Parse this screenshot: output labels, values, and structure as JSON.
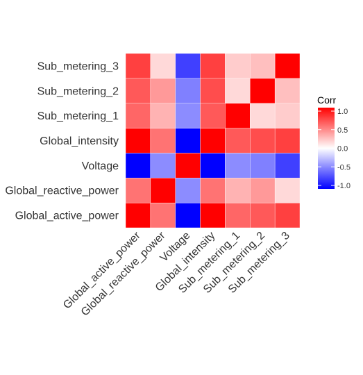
{
  "chart_data": {
    "type": "heatmap",
    "title": "",
    "xlabel": "",
    "ylabel": "",
    "x_categories": [
      "Global_active_power",
      "Global_reactive_power",
      "Voltage",
      "Global_intensity",
      "Sub_metering_1",
      "Sub_metering_2",
      "Sub_metering_3"
    ],
    "y_categories": [
      "Global_active_power",
      "Global_reactive_power",
      "Voltage",
      "Global_intensity",
      "Sub_metering_1",
      "Sub_metering_2",
      "Sub_metering_3"
    ],
    "matrix": [
      [
        1.0,
        0.55,
        -1.0,
        1.0,
        0.6,
        0.65,
        0.75
      ],
      [
        0.55,
        1.0,
        -0.45,
        0.55,
        0.3,
        0.4,
        0.15
      ],
      [
        -1.0,
        -0.45,
        1.0,
        -1.0,
        -0.45,
        -0.5,
        -0.75
      ],
      [
        1.0,
        0.55,
        -1.0,
        1.0,
        0.65,
        0.7,
        0.75
      ],
      [
        0.6,
        0.3,
        -0.45,
        0.65,
        1.0,
        0.15,
        0.2
      ],
      [
        0.65,
        0.4,
        -0.5,
        0.7,
        0.15,
        1.0,
        0.25
      ],
      [
        0.75,
        0.15,
        -0.75,
        0.75,
        0.2,
        0.25,
        1.0
      ]
    ],
    "value_range": [
      -1,
      1
    ],
    "color_low": "#0000FF",
    "color_mid": "#FFFFFF",
    "color_high": "#FF0000",
    "grid": false,
    "legend": {
      "title": "Corr",
      "placement": "right",
      "ticks": [
        1.0,
        0.5,
        0.0,
        -0.5,
        -1.0
      ],
      "tick_labels": [
        "1.0",
        "0.5",
        "0.0",
        "-0.5",
        "-1.0"
      ]
    }
  }
}
